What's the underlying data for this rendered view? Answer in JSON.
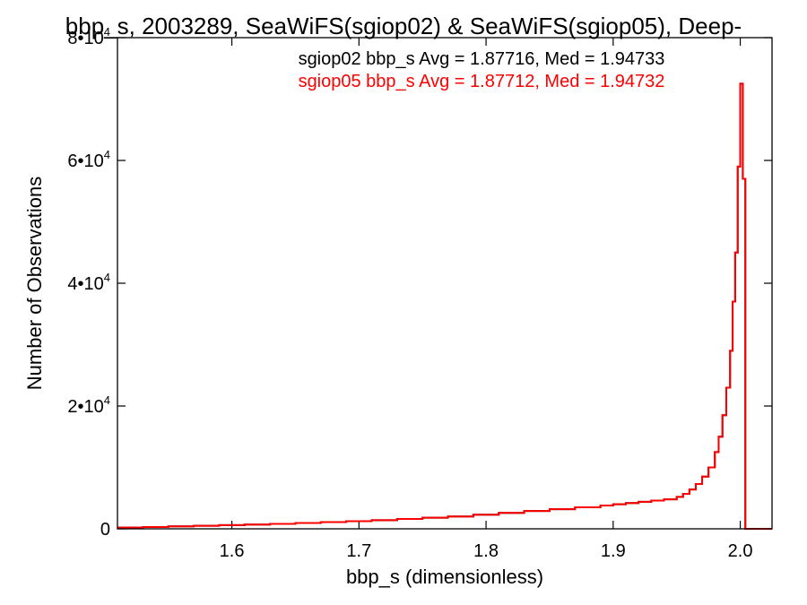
{
  "chart_data": {
    "type": "histogram",
    "title": "bbp_s, 2003289, SeaWiFS(sgiop02) & SeaWiFS(sgiop05), Deep-",
    "xlabel": "bbp_s (dimensionless)",
    "ylabel": "Number of Observations",
    "xlim": [
      1.51,
      2.025
    ],
    "ylim": [
      0,
      80000
    ],
    "x_ticks": [
      {
        "value": 1.6,
        "label": "1.6"
      },
      {
        "value": 1.7,
        "label": "1.7"
      },
      {
        "value": 1.8,
        "label": "1.8"
      },
      {
        "value": 1.9,
        "label": "1.9"
      },
      {
        "value": 2.0,
        "label": "2.0"
      }
    ],
    "y_ticks": [
      {
        "value": 0,
        "mantissa": "0",
        "exp": ""
      },
      {
        "value": 20000,
        "mantissa": "2•10",
        "exp": "4"
      },
      {
        "value": 40000,
        "mantissa": "4•10",
        "exp": "4"
      },
      {
        "value": 60000,
        "mantissa": "6•10",
        "exp": "4"
      },
      {
        "value": 80000,
        "mantissa": "8•10",
        "exp": "4"
      }
    ],
    "annotations": [
      {
        "text": "sgiop02 bbp_s Avg = 1.87716, Med = 1.94733",
        "color": "#000000"
      },
      {
        "text": "sgiop05 bbp_s Avg = 1.87712, Med = 1.94732",
        "color": "#ff0000"
      }
    ],
    "series": [
      {
        "name": "sgiop02",
        "color": "#000000",
        "x": [
          1.51,
          1.53,
          1.55,
          1.57,
          1.59,
          1.61,
          1.63,
          1.65,
          1.67,
          1.69,
          1.71,
          1.73,
          1.75,
          1.77,
          1.79,
          1.81,
          1.83,
          1.85,
          1.87,
          1.89,
          1.9,
          1.91,
          1.92,
          1.93,
          1.94,
          1.95,
          1.955,
          1.96,
          1.965,
          1.97,
          1.975,
          1.98,
          1.983,
          1.986,
          1.989,
          1.992,
          1.994,
          1.996,
          1.998,
          2.0,
          2.002,
          2.004,
          2.006,
          2.025
        ],
        "y": [
          200,
          300,
          400,
          500,
          600,
          700,
          800,
          950,
          1100,
          1250,
          1400,
          1600,
          1800,
          2000,
          2300,
          2600,
          2900,
          3200,
          3500,
          3800,
          4000,
          4200,
          4400,
          4600,
          4800,
          5200,
          5700,
          6400,
          7300,
          8500,
          10000,
          12500,
          15000,
          18500,
          23000,
          29000,
          37000,
          45000,
          59000,
          72500,
          57000,
          0,
          0,
          0
        ]
      },
      {
        "name": "sgiop05",
        "color": "#ff0000",
        "x": [
          1.51,
          1.53,
          1.55,
          1.57,
          1.59,
          1.61,
          1.63,
          1.65,
          1.67,
          1.69,
          1.71,
          1.73,
          1.75,
          1.77,
          1.79,
          1.81,
          1.83,
          1.85,
          1.87,
          1.89,
          1.9,
          1.91,
          1.92,
          1.93,
          1.94,
          1.95,
          1.955,
          1.96,
          1.965,
          1.97,
          1.975,
          1.98,
          1.983,
          1.986,
          1.989,
          1.992,
          1.994,
          1.996,
          1.998,
          2.0,
          2.002,
          2.004,
          2.006,
          2.025
        ],
        "y": [
          200,
          300,
          400,
          500,
          600,
          700,
          800,
          950,
          1100,
          1250,
          1400,
          1600,
          1800,
          2000,
          2300,
          2600,
          2900,
          3200,
          3500,
          3800,
          4000,
          4200,
          4400,
          4600,
          4800,
          5200,
          5700,
          6400,
          7300,
          8500,
          10000,
          12500,
          15000,
          18500,
          23000,
          29000,
          37000,
          45000,
          59000,
          72500,
          57000,
          0,
          0,
          0
        ]
      }
    ]
  }
}
